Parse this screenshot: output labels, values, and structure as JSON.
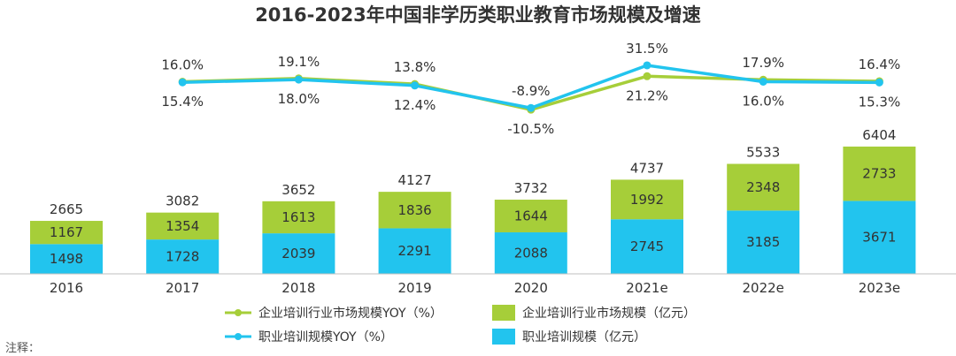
{
  "chart_data": {
    "type": "bar+line",
    "title": "2016-2023年中国非学历类职业教育市场规模及增速",
    "categories": [
      "2016",
      "2017",
      "2018",
      "2019",
      "2020",
      "2021e",
      "2022e",
      "2023e"
    ],
    "bar_series": [
      {
        "name": "职业培训规模（亿元）",
        "color": "#22C4EE",
        "values": [
          1498,
          1728,
          2039,
          2291,
          2088,
          2745,
          3185,
          3671
        ]
      },
      {
        "name": "企业培训行业市场规模（亿元）",
        "color": "#A6CE39",
        "values": [
          1167,
          1354,
          1613,
          1836,
          1644,
          1992,
          2348,
          2733
        ]
      }
    ],
    "totals": [
      2665,
      3082,
      3652,
      4127,
      3732,
      4737,
      5533,
      6404
    ],
    "line_series": [
      {
        "name": "企业培训行业市场规模YOY（%）",
        "color": "#A6CE39",
        "values": [
          null,
          16.0,
          19.1,
          13.8,
          -10.5,
          21.2,
          17.9,
          16.4
        ],
        "labels": [
          "",
          "16.0%",
          "19.1%",
          "13.8%",
          "-10.5%",
          "21.2%",
          "17.9%",
          "16.4%"
        ]
      },
      {
        "name": "职业培训规模YOY（%）",
        "color": "#22C4EE",
        "values": [
          null,
          15.4,
          18.0,
          12.4,
          -8.9,
          31.5,
          16.0,
          15.3
        ],
        "labels": [
          "",
          "15.4%",
          "18.0%",
          "12.4%",
          "-8.9%",
          "31.5%",
          "16.0%",
          "15.3%"
        ]
      }
    ],
    "legend": {
      "line_green": "企业培训行业市场规模YOY（%）",
      "bar_green": "企业培训行业市场规模（亿元）",
      "line_blue": "职业培训规模YOY（%）",
      "bar_blue": "职业培训规模（亿元）"
    },
    "legend_placement": "bottom",
    "note": "注释："
  }
}
